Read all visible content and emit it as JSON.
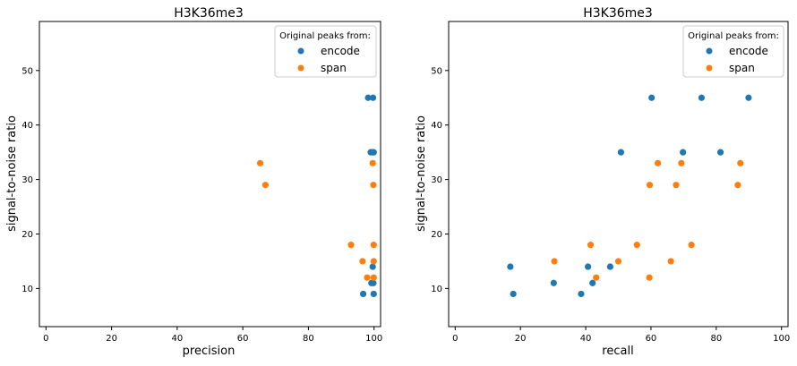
{
  "chart_data": [
    {
      "type": "scatter",
      "title": "H3K36me3",
      "xlabel": "precision",
      "ylabel": "signal-to-noise ratio",
      "xlim": [
        -2,
        102
      ],
      "ylim": [
        3,
        59
      ],
      "xticks": [
        0,
        20,
        40,
        60,
        80,
        100
      ],
      "yticks": [
        10,
        20,
        30,
        40,
        50
      ],
      "grid": false,
      "legend": {
        "title": "Original peaks from:",
        "placement": "top-right"
      },
      "series": [
        {
          "name": "encode",
          "color": "#1f77b4",
          "points": [
            {
              "x": 98.2,
              "y": 45
            },
            {
              "x": 99.7,
              "y": 45
            },
            {
              "x": 99.0,
              "y": 35
            },
            {
              "x": 99.6,
              "y": 35
            },
            {
              "x": 99.9,
              "y": 35
            },
            {
              "x": 99.6,
              "y": 14
            },
            {
              "x": 99.2,
              "y": 11
            },
            {
              "x": 99.8,
              "y": 11
            },
            {
              "x": 96.7,
              "y": 9
            },
            {
              "x": 99.9,
              "y": 9
            }
          ]
        },
        {
          "name": "span",
          "color": "#ff7f0e",
          "points": [
            {
              "x": 65.3,
              "y": 33
            },
            {
              "x": 99.6,
              "y": 33
            },
            {
              "x": 66.9,
              "y": 29
            },
            {
              "x": 99.8,
              "y": 29
            },
            {
              "x": 93.0,
              "y": 18
            },
            {
              "x": 99.9,
              "y": 18
            },
            {
              "x": 96.5,
              "y": 15
            },
            {
              "x": 99.9,
              "y": 15
            },
            {
              "x": 97.9,
              "y": 12
            },
            {
              "x": 99.9,
              "y": 12
            }
          ]
        }
      ]
    },
    {
      "type": "scatter",
      "title": "H3K36me3",
      "xlabel": "recall",
      "ylabel": "signal-to-noise ratio",
      "xlim": [
        -2,
        102
      ],
      "ylim": [
        3,
        59
      ],
      "xticks": [
        0,
        20,
        40,
        60,
        80,
        100
      ],
      "yticks": [
        10,
        20,
        30,
        40,
        50
      ],
      "grid": false,
      "legend": {
        "title": "Original peaks from:",
        "placement": "top-right"
      },
      "series": [
        {
          "name": "encode",
          "color": "#1f77b4",
          "points": [
            {
              "x": 60.2,
              "y": 45
            },
            {
              "x": 75.5,
              "y": 45
            },
            {
              "x": 89.9,
              "y": 45
            },
            {
              "x": 50.8,
              "y": 35
            },
            {
              "x": 69.8,
              "y": 35
            },
            {
              "x": 81.3,
              "y": 35
            },
            {
              "x": 16.9,
              "y": 14
            },
            {
              "x": 40.7,
              "y": 14
            },
            {
              "x": 47.5,
              "y": 14
            },
            {
              "x": 30.2,
              "y": 11
            },
            {
              "x": 42.1,
              "y": 11
            },
            {
              "x": 17.8,
              "y": 9
            },
            {
              "x": 38.6,
              "y": 9
            }
          ]
        },
        {
          "name": "span",
          "color": "#ff7f0e",
          "points": [
            {
              "x": 62.1,
              "y": 33
            },
            {
              "x": 69.3,
              "y": 33
            },
            {
              "x": 87.4,
              "y": 33
            },
            {
              "x": 59.6,
              "y": 29
            },
            {
              "x": 67.7,
              "y": 29
            },
            {
              "x": 86.6,
              "y": 29
            },
            {
              "x": 41.5,
              "y": 18
            },
            {
              "x": 55.7,
              "y": 18
            },
            {
              "x": 72.4,
              "y": 18
            },
            {
              "x": 30.4,
              "y": 15
            },
            {
              "x": 50.0,
              "y": 15
            },
            {
              "x": 66.1,
              "y": 15
            },
            {
              "x": 43.2,
              "y": 12
            },
            {
              "x": 59.5,
              "y": 12
            }
          ]
        }
      ]
    }
  ]
}
